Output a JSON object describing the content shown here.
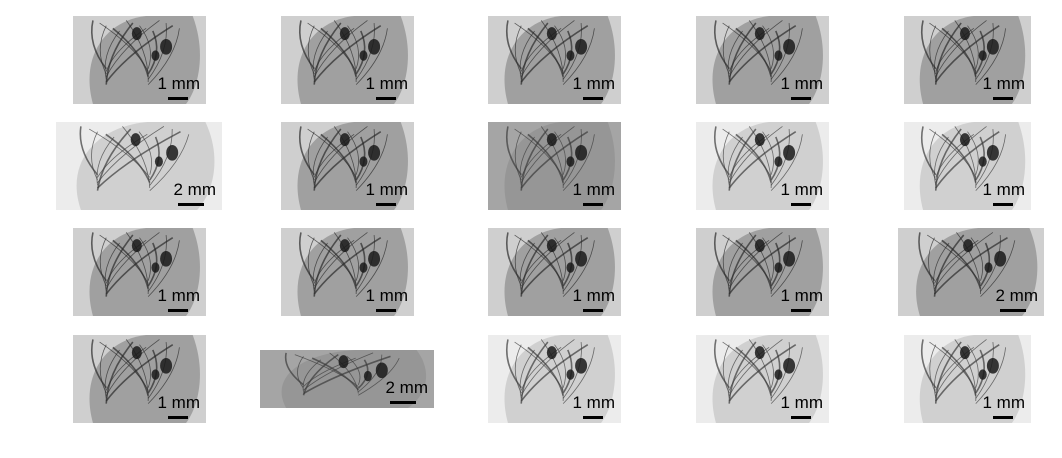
{
  "figure": {
    "panels": [
      {
        "scale_label": "1 mm",
        "tone": "dark"
      },
      {
        "scale_label": "1 mm",
        "tone": "dark"
      },
      {
        "scale_label": "1 mm",
        "tone": "dark"
      },
      {
        "scale_label": "1 mm",
        "tone": "dark"
      },
      {
        "scale_label": "1 mm",
        "tone": "dark"
      },
      {
        "scale_label": "2 mm",
        "tone": "light"
      },
      {
        "scale_label": "1 mm",
        "tone": "dark"
      },
      {
        "scale_label": "1 mm",
        "tone": "mid"
      },
      {
        "scale_label": "1 mm",
        "tone": "light"
      },
      {
        "scale_label": "1 mm",
        "tone": "light"
      },
      {
        "scale_label": "1 mm",
        "tone": "dark"
      },
      {
        "scale_label": "1 mm",
        "tone": "dark"
      },
      {
        "scale_label": "1 mm",
        "tone": "dark"
      },
      {
        "scale_label": "1 mm",
        "tone": "dark"
      },
      {
        "scale_label": "2 mm",
        "tone": "dark"
      },
      {
        "scale_label": "1 mm",
        "tone": "dark"
      },
      {
        "scale_label": "2 mm",
        "tone": "mid"
      },
      {
        "scale_label": "1 mm",
        "tone": "light"
      },
      {
        "scale_label": "1 mm",
        "tone": "light"
      },
      {
        "scale_label": "1 mm",
        "tone": "light"
      }
    ]
  }
}
